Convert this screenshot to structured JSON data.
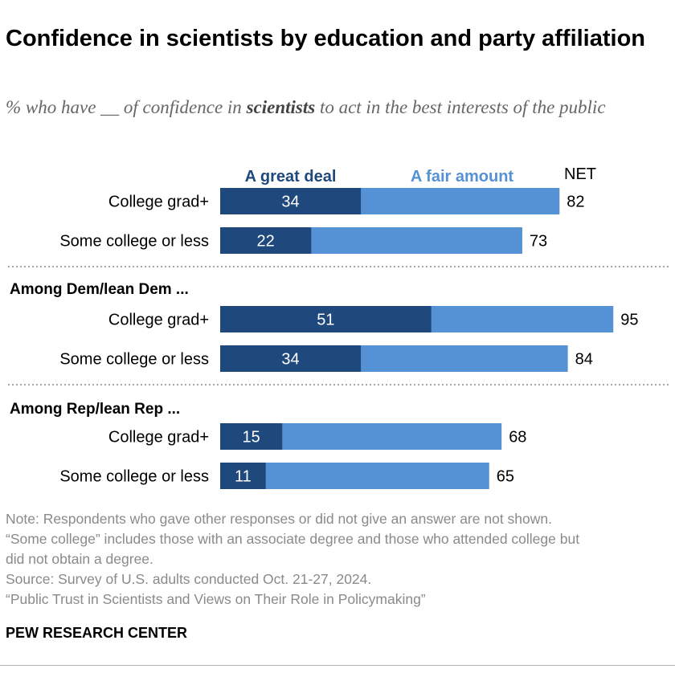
{
  "title": "Confidence in scientists by education and party affiliation",
  "subtitle": {
    "before": "% who have __ of confidence in ",
    "emph": "scientists",
    "after": " to act in the best interests of the public"
  },
  "colors": {
    "great_deal": "#1f497d",
    "fair_amount": "#5591d5",
    "great_deal_label": "#1f497d",
    "fair_amount_label": "#5591d5",
    "rule": "#8a8a8a",
    "topline": "#ffffff"
  },
  "chart_data": {
    "type": "bar",
    "orientation": "horizontal",
    "stacked": true,
    "legend": [
      "A great deal",
      "A fair amount"
    ],
    "net_label": "NET",
    "groups": [
      {
        "header": "",
        "rows": [
          {
            "label": "College grad+",
            "great_deal": 34,
            "net": 82
          },
          {
            "label": "Some college or less",
            "great_deal": 22,
            "net": 73
          }
        ]
      },
      {
        "header": "Among Dem/lean Dem ...",
        "rows": [
          {
            "label": "College grad+",
            "great_deal": 51,
            "net": 95
          },
          {
            "label": "Some college or less",
            "great_deal": 34,
            "net": 84
          }
        ]
      },
      {
        "header": "Among Rep/lean Rep ...",
        "rows": [
          {
            "label": "College grad+",
            "great_deal": 15,
            "net": 68
          },
          {
            "label": "Some college or less",
            "great_deal": 11,
            "net": 65
          }
        ]
      }
    ]
  },
  "notes": [
    "Note: Respondents who gave other responses or did not give an answer are not shown.",
    "“Some college” includes those with an associate degree and those who attended college but",
    "did not obtain a degree.",
    "Source: Survey of U.S. adults conducted Oct. 21-27, 2024.",
    "“Public Trust in Scientists and Views on Their Role in Policymaking”"
  ],
  "brand": "PEW RESEARCH CENTER"
}
